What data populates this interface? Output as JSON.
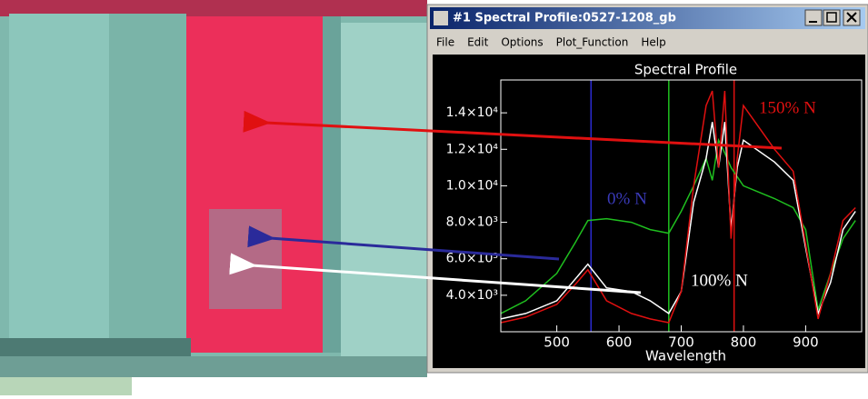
{
  "window": {
    "title": "#1 Spectral Profile:0527-1208_gb",
    "menu": [
      "File",
      "Edit",
      "Options",
      "Plot_Function",
      "Help"
    ]
  },
  "chart_data": {
    "type": "line",
    "title": "Spectral Profile",
    "x_label": "Wavelength",
    "x": [
      410,
      450,
      500,
      530,
      550,
      580,
      620,
      650,
      680,
      700,
      720,
      740,
      750,
      760,
      770,
      780,
      790,
      800,
      850,
      880,
      900,
      920,
      940,
      960,
      980
    ],
    "series": [
      {
        "name": "0% N",
        "color": "#1fbf1f",
        "values": [
          3000,
          3700,
          5200,
          6900,
          8100,
          8200,
          8000,
          7600,
          7400,
          8600,
          10000,
          11500,
          10300,
          12500,
          11800,
          11000,
          10500,
          10000,
          9300,
          8800,
          7600,
          3200,
          5200,
          7100,
          8100
        ]
      },
      {
        "name": "100% N",
        "color": "#ffffff",
        "values": [
          2700,
          3000,
          3700,
          4900,
          5700,
          4400,
          4200,
          3700,
          3000,
          4200,
          9100,
          11500,
          13500,
          11000,
          13500,
          7600,
          11000,
          12500,
          11300,
          10300,
          6600,
          3000,
          4700,
          7600,
          8600
        ]
      },
      {
        "name": "150% N",
        "color": "#e01010",
        "values": [
          2500,
          2800,
          3500,
          4600,
          5400,
          3700,
          3000,
          2700,
          2500,
          4200,
          10000,
          14400,
          15200,
          11000,
          15200,
          7100,
          11500,
          14400,
          12000,
          10800,
          6800,
          2700,
          5200,
          8100,
          8800
        ]
      }
    ],
    "markers": [
      {
        "value": 555,
        "color": "#2a2ad0"
      },
      {
        "value": 680,
        "color": "#1fbf1f"
      },
      {
        "value": 785,
        "color": "#e01010"
      }
    ],
    "xlim": [
      410,
      990
    ],
    "ylim": [
      2000,
      15800
    ],
    "xticks": [
      500,
      600,
      700,
      800,
      900
    ],
    "yticks": [
      {
        "value": 4000,
        "label": "4.0×10³"
      },
      {
        "value": 6000,
        "label": "6.0×10³"
      },
      {
        "value": 8000,
        "label": "8.0×10³"
      },
      {
        "value": 10000,
        "label": "1.0×10⁴"
      },
      {
        "value": 12000,
        "label": "1.2×10⁴"
      },
      {
        "value": 14000,
        "label": "1.4×10⁴"
      }
    ],
    "annotations": [
      {
        "text": "150% N",
        "color": "#e01010"
      },
      {
        "text": "0% N",
        "color": "#3a3ab8"
      },
      {
        "text": "100% N",
        "color": "#ffffff"
      }
    ]
  }
}
